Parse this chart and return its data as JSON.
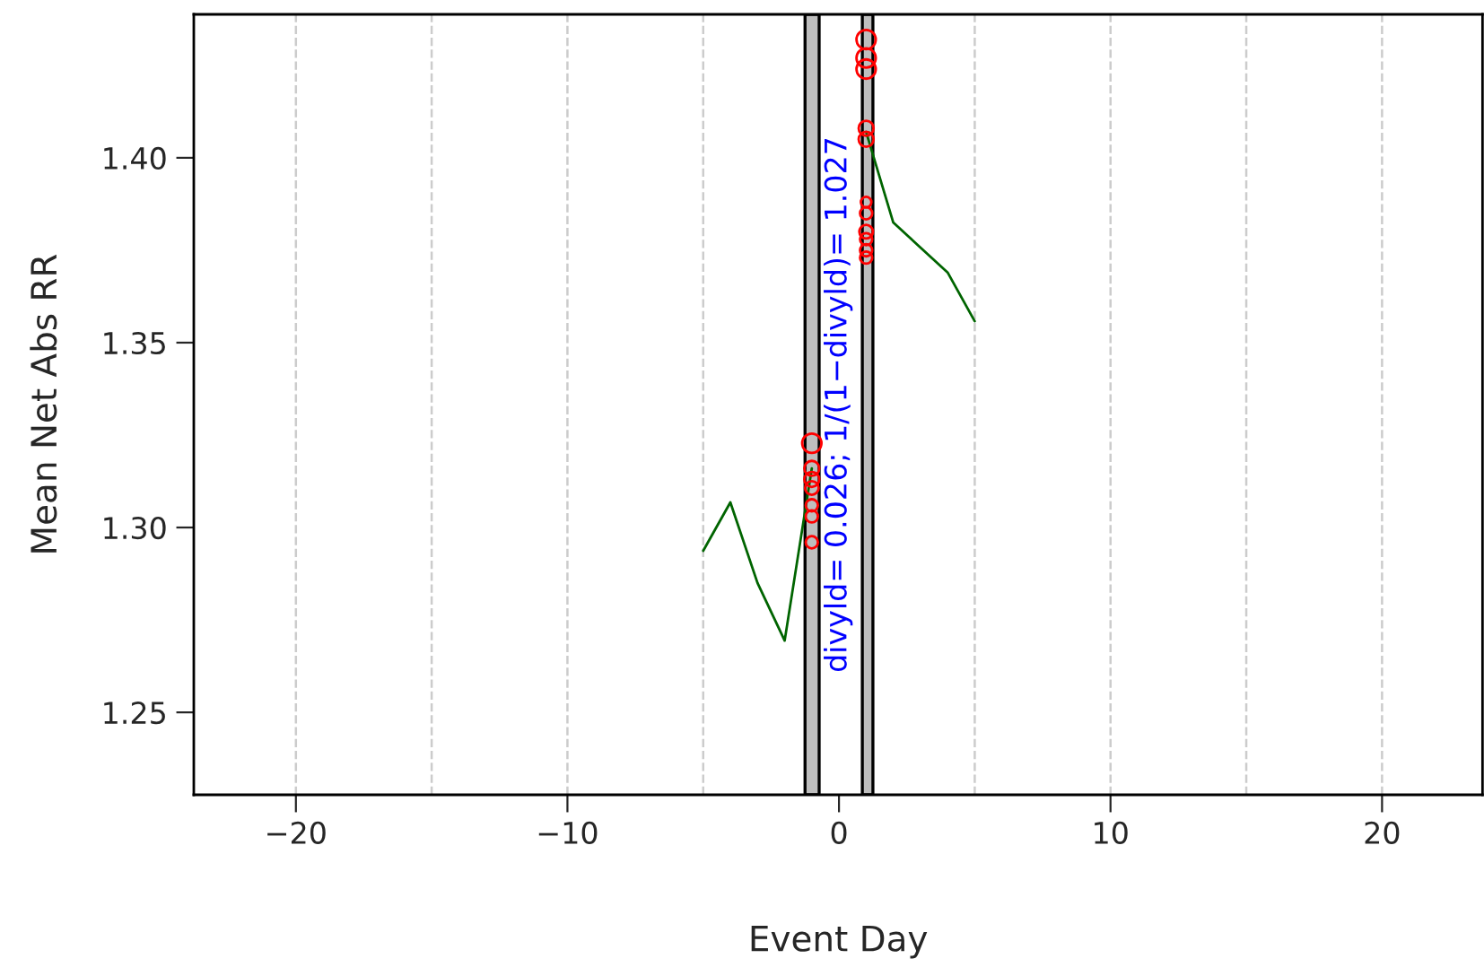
{
  "chart_data": {
    "type": "line",
    "xlabel": "Event Day",
    "ylabel": "Mean Net Abs RR",
    "xlim": [
      -23.76,
      23.7
    ],
    "ylim": [
      1.2277,
      1.4388
    ],
    "xticks": [
      {
        "value": -20,
        "label": "−20"
      },
      {
        "value": -10,
        "label": "−10"
      },
      0,
      10,
      20
    ],
    "yticks": [
      {
        "value": 1.25,
        "label": "1.25"
      },
      {
        "value": 1.3,
        "label": "1.30"
      },
      {
        "value": 1.35,
        "label": "1.35"
      },
      {
        "value": 1.4,
        "label": "1.40"
      }
    ],
    "series": [
      {
        "color": "#006400",
        "x": [
          -5,
          -4,
          -3,
          -2,
          -1,
          0,
          1,
          2,
          4,
          5
        ],
        "values": [
          1.2937,
          1.3068,
          1.285,
          1.2694,
          1.316,
          null,
          1.407,
          1.3825,
          1.369,
          1.3558
        ]
      },
      {
        "type": "bubble",
        "color": "#ff0000",
        "x": [
          -1,
          -1,
          -1,
          -1,
          -1,
          -1,
          -1,
          1,
          1,
          1,
          1,
          1,
          1,
          1,
          1,
          1,
          1,
          1
        ],
        "values": [
          1.3228,
          1.316,
          1.313,
          1.3107,
          1.306,
          1.303,
          1.296,
          1.432,
          1.427,
          1.424,
          1.408,
          1.405,
          1.388,
          1.385,
          1.38,
          1.378,
          1.375,
          1.373
        ],
        "sizes": [
          1,
          0.6,
          0.6,
          0.5,
          0.4,
          0.4,
          0.4,
          1,
          1,
          1,
          0.6,
          0.6,
          0.3,
          0.4,
          0.5,
          0.4,
          0.4,
          0.4
        ]
      }
    ],
    "bands": [
      {
        "axis": "x",
        "from": -1.25,
        "to": -0.73,
        "color": "#bebebe"
      },
      {
        "axis": "x",
        "from": 0.86,
        "to": 1.25,
        "color": "#bebebe"
      }
    ],
    "ref_lines": [
      {
        "axis": "x",
        "value": -20,
        "color": "#cccccc",
        "line_style": "dashed"
      },
      {
        "axis": "x",
        "value": -15,
        "color": "#cccccc",
        "line_style": "dashed"
      },
      {
        "axis": "x",
        "value": -10,
        "color": "#cccccc",
        "line_style": "dashed"
      },
      {
        "axis": "x",
        "value": -5,
        "color": "#cccccc",
        "line_style": "dashed"
      },
      {
        "axis": "x",
        "value": 5,
        "color": "#cccccc",
        "line_style": "dashed"
      },
      {
        "axis": "x",
        "value": 10,
        "color": "#cccccc",
        "line_style": "dashed"
      },
      {
        "axis": "x",
        "value": 15,
        "color": "#cccccc",
        "line_style": "dashed"
      },
      {
        "axis": "x",
        "value": 20,
        "color": "#cccccc",
        "line_style": "dashed"
      }
    ],
    "annotations": [
      "divyld= 0.026; 1/(1−divyld)= 1.027"
    ]
  }
}
